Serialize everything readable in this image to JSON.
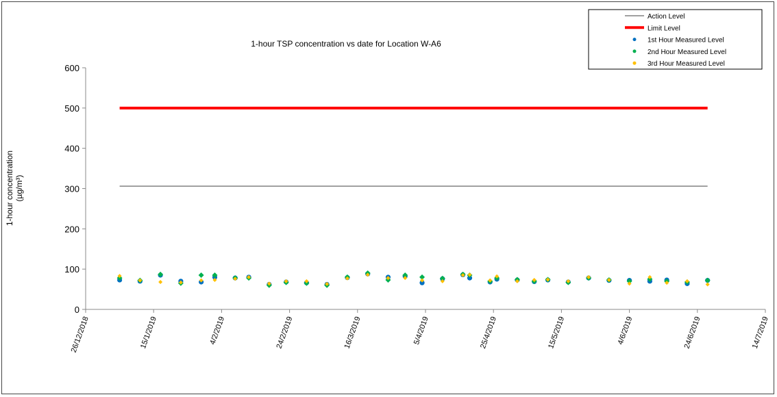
{
  "chart_data": {
    "type": "scatter",
    "title": "1-hour TSP concentration vs date for Location  W-A6",
    "ylabel": "1-hour concentration",
    "ylabel_unit": "(µg/m³)",
    "xlabel": "",
    "ylim": [
      0,
      600
    ],
    "yticks": [
      0,
      100,
      200,
      300,
      400,
      500,
      600
    ],
    "xlim": [
      "2018-12-26",
      "2019-07-14"
    ],
    "xticks": [
      "26/12/2018",
      "15/1/2019",
      "4/2/2019",
      "24/2/2019",
      "16/3/2019",
      "5/4/2019",
      "25/4/2019",
      "15/5/2019",
      "4/6/2019",
      "24/6/2019",
      "14/7/2019"
    ],
    "grid": false,
    "legend_position": "top-right",
    "action_level": {
      "name": "Action Level",
      "value": 306,
      "color": "#404040",
      "from": "2019-01-05",
      "to": "2019-06-27"
    },
    "limit_level": {
      "name": "Limit Level",
      "value": 500,
      "color": "#ff0000",
      "from": "2019-01-05",
      "to": "2019-06-27"
    },
    "dates": [
      "2019-01-05",
      "2019-01-11",
      "2019-01-17",
      "2019-01-23",
      "2019-01-29",
      "2019-02-02",
      "2019-02-08",
      "2019-02-12",
      "2019-02-18",
      "2019-02-23",
      "2019-03-01",
      "2019-03-07",
      "2019-03-13",
      "2019-03-19",
      "2019-03-25",
      "2019-03-30",
      "2019-04-04",
      "2019-04-10",
      "2019-04-16",
      "2019-04-18",
      "2019-04-24",
      "2019-04-26",
      "2019-05-02",
      "2019-05-07",
      "2019-05-11",
      "2019-05-17",
      "2019-05-23",
      "2019-05-29",
      "2019-06-04",
      "2019-06-10",
      "2019-06-15",
      "2019-06-21",
      "2019-06-27"
    ],
    "series": [
      {
        "name": "1st Hour Measured Level",
        "color": "#0070c0",
        "values": [
          73,
          70,
          85,
          70,
          68,
          80,
          78,
          80,
          62,
          68,
          66,
          62,
          79,
          88,
          80,
          82,
          66,
          76,
          86,
          78,
          68,
          75,
          73,
          69,
          73,
          68,
          78,
          72,
          72,
          70,
          73,
          64,
          72
        ]
      },
      {
        "name": "2nd Hour Measured Level",
        "color": "#00b050",
        "values": [
          78,
          72,
          87,
          65,
          85,
          85,
          78,
          78,
          60,
          67,
          65,
          60,
          80,
          90,
          73,
          85,
          80,
          77,
          87,
          85,
          70,
          78,
          74,
          70,
          74,
          67,
          78,
          73,
          70,
          75,
          70,
          68,
          72
        ]
      },
      {
        "name": "3rd Hour Measured Level",
        "color": "#ffc000",
        "values": [
          83,
          72,
          68,
          67,
          72,
          73,
          76,
          80,
          64,
          70,
          70,
          63,
          77,
          86,
          78,
          78,
          72,
          70,
          85,
          86,
          72,
          82,
          70,
          73,
          74,
          70,
          80,
          73,
          64,
          80,
          66,
          70,
          62
        ]
      }
    ]
  }
}
